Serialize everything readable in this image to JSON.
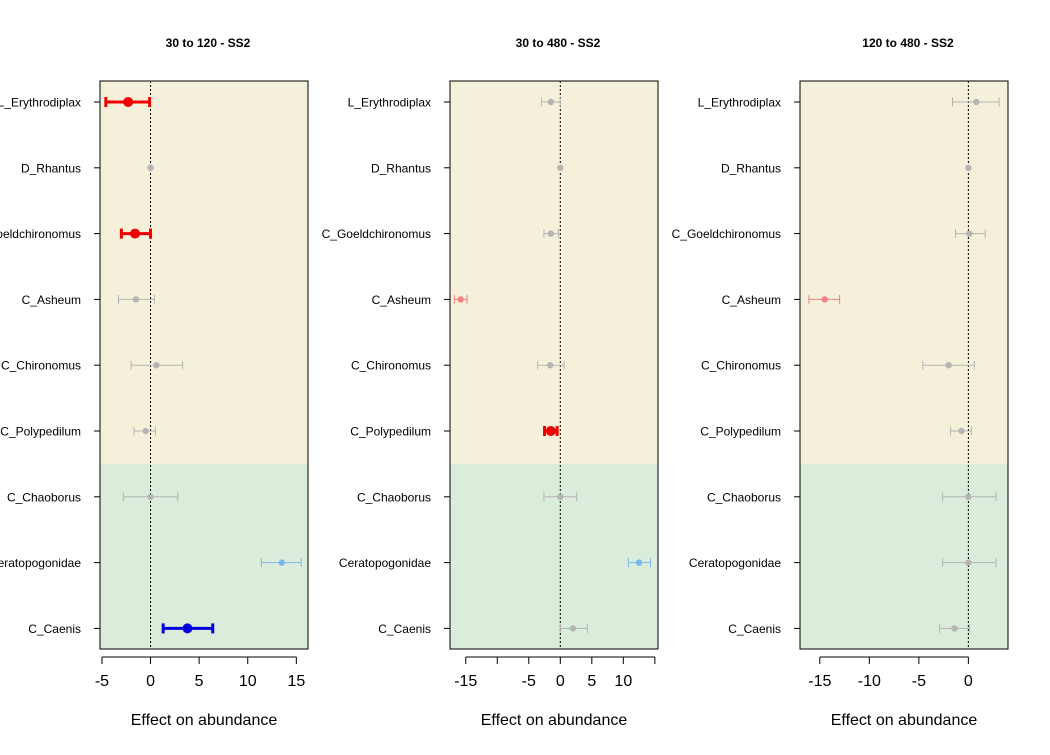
{
  "chart_data": [
    {
      "type": "scatter",
      "title": "30 to 120 - SS2",
      "xlabel": "Effect on abundance",
      "xlim": [
        -5.2,
        16.2
      ],
      "xticks": [
        -5,
        0,
        5,
        10,
        15
      ],
      "categories": [
        "L_Erythrodiplax",
        "D_Rhantus",
        "C_Goeldchironomus",
        "C_Asheum",
        "C_Chironomus",
        "C_Polypedilum",
        "C_Chaoborus",
        "Ceratopogonidae",
        "C_Caenis"
      ],
      "estimates": [
        -2.3,
        0.0,
        -1.6,
        -1.5,
        0.6,
        -0.5,
        0.0,
        13.5,
        3.8
      ],
      "lower": [
        -4.6,
        0.0,
        -3.0,
        -3.3,
        -2.0,
        -1.7,
        -2.8,
        11.4,
        1.3
      ],
      "upper": [
        -0.1,
        0.0,
        0.0,
        0.4,
        3.3,
        0.5,
        2.8,
        15.5,
        6.4
      ],
      "status": [
        "sig-negative",
        "ns",
        "sig-negative",
        "ns",
        "ns",
        "ns",
        "ns",
        "positive",
        "sig-positive"
      ],
      "bands": [
        {
          "from_category": "L_Erythrodiplax",
          "to_category": "C_Polypedilum",
          "color": "#f5f0da"
        },
        {
          "from_category": "C_Chaoborus",
          "to_category": "C_Caenis",
          "color": "#dcecdb"
        }
      ],
      "reference_line": 0
    },
    {
      "type": "scatter",
      "title": "30 to 480 - SS2",
      "xlabel": "Effect on abundance",
      "xlim": [
        -17.5,
        15.5
      ],
      "xticks": [
        -15,
        -10,
        -5,
        0,
        5,
        10,
        15
      ],
      "tick_labels": [
        "-15",
        "",
        "-5",
        "0",
        "5",
        "10",
        ""
      ],
      "categories": [
        "L_Erythrodiplax",
        "D_Rhantus",
        "C_Goeldchironomus",
        "C_Asheum",
        "C_Chironomus",
        "C_Polypedilum",
        "C_Chaoborus",
        "Ceratopogonidae",
        "C_Caenis"
      ],
      "estimates": [
        -1.5,
        0.0,
        -1.5,
        -15.8,
        -1.6,
        -1.5,
        0.0,
        12.5,
        2.0
      ],
      "lower": [
        -3.0,
        0.0,
        -2.6,
        -16.8,
        -3.6,
        -2.5,
        -2.6,
        10.8,
        0.0
      ],
      "upper": [
        0.0,
        0.0,
        -0.3,
        -14.8,
        0.6,
        -0.5,
        2.6,
        14.3,
        4.3
      ],
      "status": [
        "ns",
        "ns",
        "ns",
        "negative",
        "ns",
        "sig-negative",
        "ns",
        "positive",
        "ns"
      ],
      "bands": [
        {
          "from_category": "L_Erythrodiplax",
          "to_category": "C_Polypedilum",
          "color": "#f5f0da"
        },
        {
          "from_category": "C_Chaoborus",
          "to_category": "C_Caenis",
          "color": "#dcecdb"
        }
      ],
      "reference_line": 0
    },
    {
      "type": "scatter",
      "title": "120 to 480 - SS2",
      "xlabel": "Effect on abundance",
      "xlim": [
        -17.0,
        4.0
      ],
      "xticks": [
        -15,
        -10,
        -5,
        0
      ],
      "categories": [
        "L_Erythrodiplax",
        "D_Rhantus",
        "C_Goeldchironomus",
        "C_Asheum",
        "C_Chironomus",
        "C_Polypedilum",
        "C_Chaoborus",
        "Ceratopogonidae",
        "C_Caenis"
      ],
      "estimates": [
        0.8,
        0.0,
        0.1,
        -14.5,
        -2.0,
        -0.7,
        0.0,
        0.0,
        -1.4
      ],
      "lower": [
        -1.6,
        0.0,
        -1.3,
        -16.1,
        -4.6,
        -1.8,
        -2.6,
        -2.6,
        -2.9
      ],
      "upper": [
        3.1,
        0.0,
        1.7,
        -13.0,
        0.6,
        0.3,
        2.8,
        2.8,
        0.1
      ],
      "status": [
        "ns",
        "ns",
        "ns",
        "negative",
        "ns",
        "ns",
        "ns",
        "ns",
        "ns"
      ],
      "bands": [
        {
          "from_category": "L_Erythrodiplax",
          "to_category": "C_Polypedilum",
          "color": "#f5f0da"
        },
        {
          "from_category": "C_Chaoborus",
          "to_category": "C_Caenis",
          "color": "#dcecdb"
        }
      ],
      "reference_line": 0
    }
  ],
  "styles": {
    "ns": {
      "color": "#b5b5b5"
    },
    "negative": {
      "color": "#f28282"
    },
    "positive": {
      "color": "#7ab9ef"
    },
    "sig-negative": {
      "color": "#ee0000"
    },
    "sig-positive": {
      "color": "#0000dd"
    }
  }
}
